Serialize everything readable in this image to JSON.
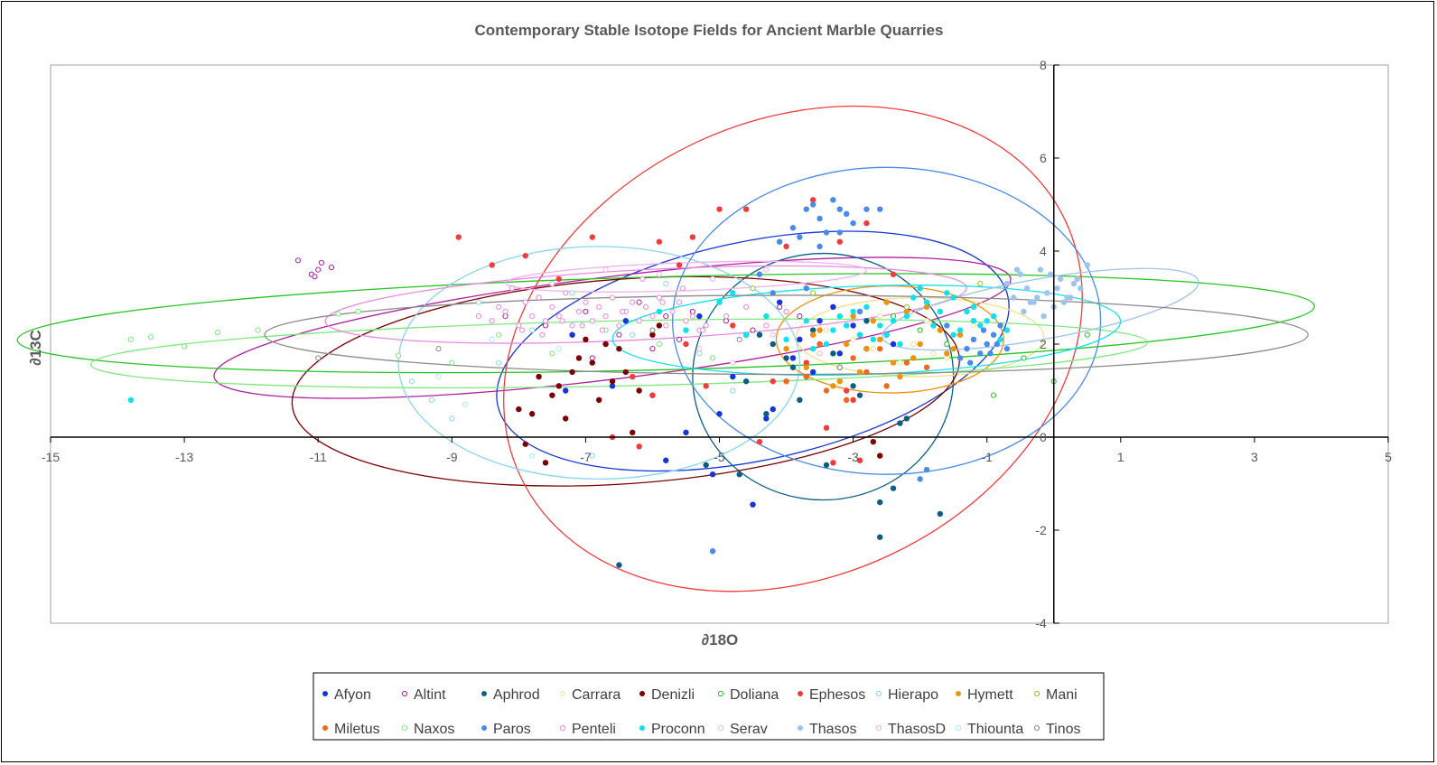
{
  "chart_data": {
    "type": "scatter",
    "title": "Contemporary Stable Isotope Fields for Ancient Marble Quarries",
    "xlabel": "∂18O",
    "ylabel": "∂13C",
    "xlim": [
      -15,
      5
    ],
    "ylim": [
      -4,
      8
    ],
    "x_ticks": [
      -15,
      -13,
      -11,
      -9,
      -7,
      -5,
      -3,
      -1,
      1,
      3,
      5
    ],
    "y_ticks": [
      -4,
      -2,
      0,
      2,
      4,
      6,
      8
    ],
    "grid": false,
    "legend_position": "bottom",
    "series": [
      {
        "name": "Afyon",
        "marker": "filled",
        "color": "#1535d6",
        "ellipse": {
          "cx": -4.5,
          "cy": 1.85,
          "rx": 3.9,
          "ry": 2.35,
          "angle": -12
        },
        "x": [
          -7.3,
          -7.2,
          -6.6,
          -6.4,
          -6.0,
          -5.5,
          -5.3,
          -5.0,
          -4.8,
          -4.5,
          -4.2,
          -3.9,
          -3.8,
          -3.5,
          -3.3,
          -3.0,
          -2.8,
          -2.4,
          -5.8,
          -5.1,
          -4.6,
          -4.1,
          -3.6,
          -4.3,
          -2.9,
          -3.2
        ],
        "y": [
          1.0,
          2.2,
          1.1,
          2.5,
          0.9,
          0.1,
          2.6,
          0.5,
          1.3,
          -1.45,
          0.6,
          1.7,
          2.1,
          2.5,
          2.8,
          2.4,
          1.9,
          2.0,
          -0.5,
          -0.8,
          2.2,
          2.9,
          1.4,
          0.4,
          2.2,
          1.8
        ]
      },
      {
        "name": "Altint",
        "marker": "open",
        "color": "#b01fa0",
        "ellipse": {
          "cx": -6.6,
          "cy": 2.35,
          "rx": 6.0,
          "ry": 1.1,
          "angle": -7
        },
        "x": [
          -11.3,
          -11.1,
          -11.0,
          -10.95,
          -10.8,
          -11.05,
          -6.2,
          -5.8,
          -5.4,
          -4.9,
          -4.5,
          -4.1,
          -3.8,
          -8.2,
          -7.6,
          -7.0,
          -6.5,
          -6.9,
          -6.0,
          -5.6
        ],
        "y": [
          3.8,
          3.5,
          3.6,
          3.75,
          3.65,
          3.45,
          2.9,
          2.6,
          2.7,
          2.5,
          2.3,
          2.8,
          2.6,
          2.6,
          2.4,
          2.7,
          2.2,
          1.7,
          1.9,
          2.1
        ]
      },
      {
        "name": "Aphrod",
        "marker": "filled",
        "color": "#0a5e86",
        "ellipse": {
          "cx": -3.45,
          "cy": 1.3,
          "rx": 1.95,
          "ry": 2.65,
          "angle": 0
        },
        "x": [
          -5.2,
          -4.7,
          -4.6,
          -4.3,
          -4.2,
          -3.9,
          -3.8,
          -3.6,
          -3.4,
          -3.3,
          -3.0,
          -2.8,
          -2.6,
          -2.4,
          -2.3,
          -2.2,
          -1.7,
          -6.5,
          -2.6,
          -3.5,
          -4.0,
          -3.7,
          -3.2,
          -2.9,
          -4.4,
          -2.5
        ],
        "y": [
          -0.6,
          -0.8,
          1.2,
          0.5,
          2.0,
          1.5,
          0.8,
          2.3,
          -0.6,
          1.8,
          1.1,
          2.5,
          -1.4,
          -1.1,
          0.3,
          0.4,
          -1.65,
          -2.75,
          -2.15,
          2.0,
          1.7,
          1.3,
          1.5,
          0.9,
          2.2,
          2.2
        ]
      },
      {
        "name": "Carrara",
        "marker": "open",
        "color": "#f0e18a",
        "ellipse": {
          "cx": -2.0,
          "cy": 2.15,
          "rx": 1.85,
          "ry": 0.85,
          "angle": 0
        },
        "x": [
          -3.4,
          -3.0,
          -2.7,
          -2.4,
          -2.1,
          -1.8,
          -1.5,
          -1.2,
          -2.6,
          -2.0,
          -1.6,
          -2.9,
          -1.3,
          -2.3,
          -1.9
        ],
        "y": [
          2.3,
          2.1,
          1.9,
          2.5,
          2.0,
          1.8,
          2.2,
          2.4,
          2.6,
          2.3,
          1.7,
          2.7,
          1.9,
          1.6,
          2.5
        ]
      },
      {
        "name": "Denizli",
        "marker": "filled",
        "color": "#7a0000",
        "ellipse": {
          "cx": -6.4,
          "cy": 1.2,
          "rx": 5.0,
          "ry": 2.2,
          "angle": -4
        },
        "x": [
          -8.0,
          -7.9,
          -7.8,
          -7.6,
          -7.5,
          -7.4,
          -7.3,
          -7.2,
          -7.0,
          -6.9,
          -6.8,
          -6.7,
          -6.6,
          -6.5,
          -6.4,
          -6.3,
          -6.2,
          -5.9,
          -7.7,
          -7.1,
          -6.0,
          -2.7,
          -2.6
        ],
        "y": [
          0.6,
          -0.15,
          0.5,
          -0.55,
          0.9,
          1.1,
          0.4,
          1.4,
          2.1,
          1.6,
          0.8,
          2.0,
          1.2,
          1.9,
          1.4,
          0.1,
          1.0,
          2.4,
          1.3,
          1.7,
          2.2,
          -0.1,
          -0.4
        ]
      },
      {
        "name": "Doliana",
        "marker": "open",
        "color": "#22c522",
        "ellipse": {
          "cx": -5.8,
          "cy": 2.45,
          "rx": 9.7,
          "ry": 1.0,
          "angle": -1.5
        },
        "x": [
          -0.9,
          -0.45,
          0.0,
          0.5,
          -1.2,
          -1.6,
          -2.0,
          -2.4
        ],
        "y": [
          0.9,
          1.7,
          1.2,
          2.2,
          2.8,
          2.0,
          2.3,
          2.6
        ]
      },
      {
        "name": "Ephesos",
        "marker": "filled",
        "color": "#f23c3c",
        "ellipse": {
          "cx": -3.9,
          "cy": 1.9,
          "rx": 4.5,
          "ry": 4.9,
          "angle": -25
        },
        "x": [
          -8.9,
          -8.4,
          -7.9,
          -7.4,
          -6.9,
          -6.2,
          -5.9,
          -5.6,
          -5.4,
          -5.0,
          -4.6,
          -4.0,
          -3.6,
          -3.2,
          -2.8,
          -2.4,
          -6.6,
          -6.0,
          -5.2,
          -4.4,
          -3.4,
          -3.0,
          -2.9,
          -3.3,
          -3.1,
          -4.8,
          -5.5,
          -6.3,
          -3.7,
          -4.2
        ],
        "y": [
          4.3,
          3.7,
          3.9,
          3.4,
          4.3,
          -0.2,
          4.2,
          3.7,
          4.3,
          4.9,
          4.9,
          4.1,
          5.1,
          4.2,
          4.6,
          3.5,
          0.0,
          0.9,
          1.1,
          -0.1,
          0.2,
          0.8,
          -0.5,
          -0.55,
          1.0,
          2.4,
          2.0,
          1.3,
          1.6,
          1.2
        ]
      },
      {
        "name": "Hierapo",
        "marker": "open",
        "color": "#8ad6ec",
        "ellipse": {
          "cx": -6.8,
          "cy": 1.6,
          "rx": 3.0,
          "ry": 2.5,
          "angle": 0
        },
        "x": [
          -9.3,
          -9.0,
          -8.3,
          -7.8,
          -7.2,
          -6.9,
          -6.3,
          -5.8,
          -5.3,
          -4.8,
          -9.6,
          -8.6
        ],
        "y": [
          0.8,
          0.4,
          1.6,
          2.3,
          3.1,
          -0.4,
          2.2,
          3.3,
          1.8,
          1.0,
          1.2,
          2.9
        ]
      },
      {
        "name": "Hymett",
        "marker": "filled",
        "color": "#f0920b",
        "ellipse": {
          "cx": -2.45,
          "cy": 2.1,
          "rx": 1.7,
          "ry": 1.15,
          "angle": 0
        },
        "x": [
          -4.0,
          -3.7,
          -3.5,
          -3.2,
          -3.0,
          -2.8,
          -2.6,
          -2.4,
          -2.2,
          -2.0,
          -1.8,
          -1.6,
          -1.4,
          -1.2,
          -3.3,
          -2.9,
          -2.5,
          -2.1,
          -1.7,
          -3.6,
          -2.3,
          -1.9,
          -2.7,
          -3.1,
          -1.5
        ],
        "y": [
          1.9,
          1.5,
          2.3,
          1.2,
          2.6,
          1.9,
          2.1,
          1.6,
          2.7,
          2.0,
          2.4,
          1.8,
          2.2,
          2.5,
          1.1,
          1.4,
          2.9,
          1.7,
          2.3,
          2.2,
          1.3,
          2.8,
          2.5,
          2.0,
          1.9
        ]
      },
      {
        "name": "Mani",
        "marker": "open",
        "color": "#8cc81c",
        "ellipse": null,
        "x": [
          -4.5,
          -4.0,
          -3.6,
          -2.2,
          -1.5,
          -1.1
        ],
        "y": [
          3.2,
          2.7,
          3.1,
          2.8,
          3.0,
          3.3
        ]
      },
      {
        "name": "Miletus",
        "marker": "filled",
        "color": "#f06a1e",
        "ellipse": null,
        "x": [
          -4.0,
          -3.7,
          -3.4,
          -3.1,
          -2.8,
          -2.5,
          -2.2,
          -1.9,
          -3.5,
          -2.6,
          -3.0
        ],
        "y": [
          1.2,
          1.3,
          1.0,
          0.8,
          1.4,
          1.1,
          1.6,
          1.5,
          2.0,
          1.9,
          1.7
        ]
      },
      {
        "name": "Naxos",
        "marker": "open",
        "color": "#7de87d",
        "ellipse": {
          "cx": -6.5,
          "cy": 1.8,
          "rx": 7.9,
          "ry": 0.7,
          "angle": -1.2
        },
        "x": [
          -13.8,
          -13.5,
          -13.0,
          -12.5,
          -11.9,
          -10.7,
          -10.4,
          -9.8,
          -9.0,
          -8.3,
          -7.5,
          -6.7,
          -5.9,
          -5.1
        ],
        "y": [
          2.1,
          2.15,
          1.95,
          2.25,
          2.3,
          2.65,
          2.7,
          1.75,
          1.6,
          2.2,
          1.8,
          2.3,
          2.0,
          1.7
        ]
      },
      {
        "name": "Paros",
        "marker": "filled",
        "color": "#4a8be8",
        "ellipse": {
          "cx": -2.5,
          "cy": 2.5,
          "rx": 3.2,
          "ry": 3.3,
          "angle": 0
        },
        "x": [
          -3.9,
          -3.7,
          -3.6,
          -3.5,
          -3.4,
          -3.3,
          -3.2,
          -3.1,
          -3.0,
          -2.8,
          -2.6,
          -4.1,
          -3.8,
          -3.5,
          -3.2,
          -1.4,
          -1.3,
          -1.2,
          -1.1,
          -1.0,
          -0.9,
          -0.8,
          -0.7,
          -1.25,
          -1.05,
          -0.95,
          -0.85,
          -5.1,
          -2.0,
          -1.9,
          -1.6,
          -2.9,
          -3.7,
          -4.4,
          -4.2
        ],
        "y": [
          4.5,
          4.9,
          5.0,
          4.7,
          4.4,
          5.1,
          4.9,
          4.8,
          4.6,
          4.9,
          4.9,
          4.2,
          4.3,
          4.1,
          4.4,
          1.7,
          1.9,
          2.1,
          1.8,
          2.0,
          2.2,
          2.4,
          1.9,
          1.6,
          2.3,
          1.8,
          2.0,
          -2.45,
          -0.9,
          -0.7,
          2.4,
          2.7,
          3.2,
          3.5,
          3.1
        ]
      },
      {
        "name": "Penteli",
        "marker": "open",
        "color": "#e88ae0",
        "ellipse": {
          "cx": -6.1,
          "cy": 2.85,
          "rx": 4.8,
          "ry": 0.75,
          "angle": -3
        },
        "x": [
          -8.6,
          -8.4,
          -8.2,
          -8.0,
          -7.9,
          -7.8,
          -7.7,
          -7.6,
          -7.5,
          -7.4,
          -7.3,
          -7.2,
          -7.1,
          -7.0,
          -6.9,
          -6.8,
          -6.7,
          -6.6,
          -6.5,
          -6.4,
          -6.3,
          -6.2,
          -6.1,
          -6.0,
          -5.9,
          -5.8,
          -5.7,
          -5.6,
          -5.5,
          -5.4,
          -5.3,
          -5.2,
          -8.3,
          -8.1,
          -7.95,
          -7.65,
          -7.35,
          -7.05,
          -6.75,
          -6.45,
          -6.15,
          -5.85,
          -5.55,
          -5.25,
          -4.9,
          -4.6,
          -4.3,
          -4.0
        ],
        "y": [
          2.6,
          2.5,
          2.7,
          2.4,
          2.9,
          2.6,
          3.0,
          2.5,
          2.8,
          2.6,
          3.1,
          2.4,
          2.7,
          2.9,
          2.5,
          2.8,
          2.6,
          3.0,
          2.4,
          2.7,
          2.9,
          2.5,
          2.8,
          2.6,
          3.0,
          2.4,
          2.7,
          2.9,
          2.5,
          2.6,
          2.3,
          2.4,
          2.8,
          3.2,
          2.3,
          2.2,
          2.5,
          2.4,
          2.3,
          2.7,
          3.4,
          2.9,
          3.2,
          2.3,
          2.6,
          2.8,
          2.4,
          2.7
        ]
      },
      {
        "name": "Proconn",
        "marker": "filled",
        "color": "#12e0ee",
        "ellipse": {
          "cx": -2.8,
          "cy": 2.3,
          "rx": 3.8,
          "ry": 0.95,
          "angle": -2
        },
        "x": [
          -13.8,
          -5.9,
          -5.5,
          -5.0,
          -4.6,
          -4.3,
          -4.0,
          -3.7,
          -3.4,
          -3.1,
          -2.8,
          -2.5,
          -2.2,
          -1.9,
          -1.6,
          -1.3,
          -1.0,
          -0.7,
          -3.6,
          -3.3,
          -3.0,
          -2.7,
          -2.4,
          -2.1,
          -1.8,
          -1.5,
          -1.2,
          -0.9,
          -2.0,
          -1.7,
          -1.4,
          -1.1,
          -2.3,
          -2.6,
          -2.9,
          -3.2,
          -1.5,
          -1.2,
          -0.8,
          -4.8
        ],
        "y": [
          0.8,
          2.7,
          2.3,
          2.9,
          2.2,
          2.6,
          2.1,
          2.5,
          2.0,
          2.4,
          2.8,
          2.2,
          2.6,
          2.9,
          3.1,
          2.7,
          2.5,
          2.3,
          1.9,
          2.3,
          2.7,
          2.1,
          2.5,
          3.0,
          2.4,
          2.2,
          2.8,
          2.6,
          3.2,
          2.7,
          2.3,
          2.4,
          2.0,
          2.4,
          2.2,
          2.6,
          3.0,
          2.5,
          2.1,
          3.1
        ]
      },
      {
        "name": "Serav",
        "marker": "open",
        "color": "#e8b8e4",
        "ellipse": null,
        "x": [
          -5.3,
          -4.8,
          -4.2,
          -3.5
        ],
        "y": [
          1.9,
          1.6,
          2.2,
          1.8
        ]
      },
      {
        "name": "Thasos",
        "marker": "filled",
        "color": "#9cc4ec",
        "ellipse": {
          "cx": -0.2,
          "cy": 2.75,
          "rx": 2.4,
          "ry": 0.65,
          "angle": -10
        },
        "x": [
          -0.7,
          -0.6,
          -0.5,
          -0.4,
          -0.3,
          -0.2,
          -0.1,
          0.0,
          0.1,
          0.2,
          0.3,
          0.4,
          0.5,
          -0.45,
          -0.25,
          -0.05,
          0.15,
          0.35,
          -0.55,
          -0.15,
          0.05,
          0.25,
          -0.35
        ],
        "y": [
          3.3,
          3.0,
          3.5,
          3.2,
          2.9,
          3.6,
          3.1,
          2.8,
          3.4,
          3.0,
          3.3,
          3.2,
          3.7,
          2.7,
          3.0,
          3.5,
          2.9,
          3.4,
          3.6,
          2.6,
          3.2,
          3.0,
          2.9
        ]
      },
      {
        "name": "ThasosD",
        "marker": "open",
        "color": "#f0b0f0",
        "ellipse": {
          "cx": -5.5,
          "cy": 3.45,
          "rx": 2.7,
          "ry": 0.3,
          "angle": -2
        },
        "x": [
          -7.5,
          -6.7,
          -5.9,
          -5.1,
          -4.3
        ],
        "y": [
          3.3,
          3.6,
          3.5,
          3.4,
          3.6
        ]
      },
      {
        "name": "Thiounta",
        "marker": "open",
        "color": "#a8e8ff",
        "ellipse": null,
        "x": [
          -9.2,
          -8.8,
          -8.4,
          -7.8,
          -7.4
        ],
        "y": [
          1.3,
          0.7,
          2.1,
          -0.4,
          1.9
        ]
      },
      {
        "name": "Tinos",
        "marker": "open",
        "color": "#8a8a8a",
        "ellipse": {
          "cx": -4.0,
          "cy": 2.2,
          "rx": 7.8,
          "ry": 0.85,
          "angle": 0
        },
        "x": [
          -11.0,
          -9.2,
          -6.0,
          -4.7,
          -3.2
        ],
        "y": [
          1.7,
          1.9,
          2.3,
          2.1,
          1.5
        ]
      }
    ]
  }
}
